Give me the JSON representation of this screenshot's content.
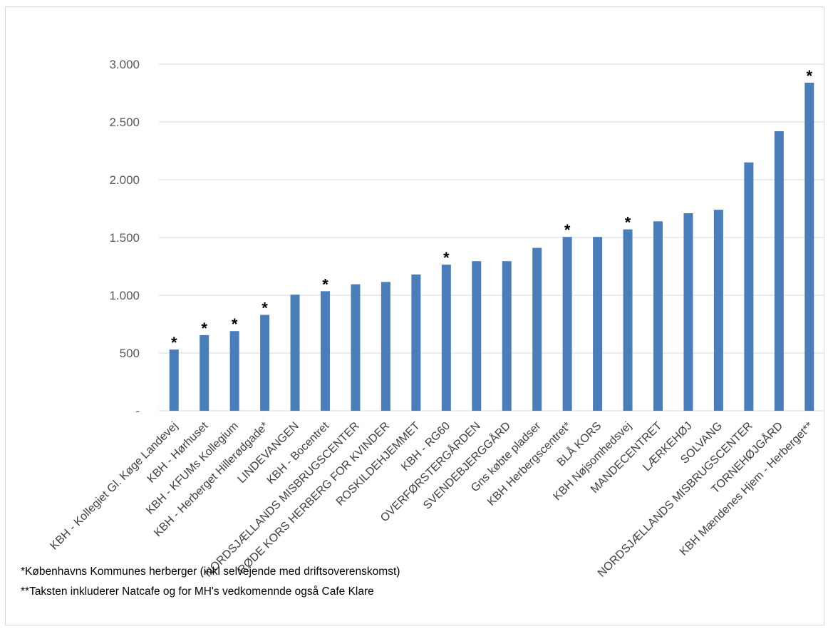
{
  "chart_data": {
    "type": "bar",
    "title": "",
    "xlabel": "",
    "ylabel": "",
    "ylim": [
      0,
      3000
    ],
    "yticks": [
      0,
      500,
      1000,
      1500,
      2000,
      2500,
      3000
    ],
    "ytick_labels": [
      "-",
      "500",
      "1.000",
      "1.500",
      "2.000",
      "2.500",
      "3.000"
    ],
    "grid": true,
    "legend": "none",
    "bar_color": "#4a7ebb",
    "categories": [
      "KBH - Kollegiet Gl. Køge Landevej",
      "KBH - Hørhuset",
      "KBH - KFUMs Kollegium",
      "KBH - Herberget Hillerødgade*",
      "LINDEVANGEN",
      "KBH - Bocentret",
      "NORDSJÆLLANDS MISBRUGSCENTER",
      "RØDE KORS HERBERG FOR KVINDER",
      "ROSKILDEHJEMMET",
      "KBH - RG60",
      "OVERFØRSTERGÅRDEN",
      "SVENDEBJERGGÅRD",
      "Gns købte pladser",
      "KBH Herbergscentret*",
      "BLÅ KORS",
      "KBH Nøjsomhedsvej",
      "MANDECENTRET",
      "LÆRKEHØJ",
      "SOLVANG",
      "NORDSJÆLLANDS MISBRUGSCENTER",
      "TORNEHØJGÅRD",
      "KBH Mændenes Hjem - Herberget**"
    ],
    "values": [
      530,
      655,
      690,
      830,
      1005,
      1035,
      1095,
      1115,
      1180,
      1265,
      1295,
      1295,
      1410,
      1505,
      1505,
      1570,
      1640,
      1710,
      1740,
      2150,
      2420,
      2840
    ],
    "markers": [
      "*",
      "*",
      "*",
      "*",
      "",
      "*",
      "",
      "",
      "",
      "*",
      "",
      "",
      "",
      "*",
      "",
      "*",
      "",
      "",
      "",
      "",
      "",
      "*"
    ]
  },
  "footnotes": [
    "*Københavns Kommunes herberger (inkl selvejende med driftsoverenskomst)",
    "**Taksten inkluderer Natcafe og for MH's vedkomennde også Cafe Klare"
  ]
}
